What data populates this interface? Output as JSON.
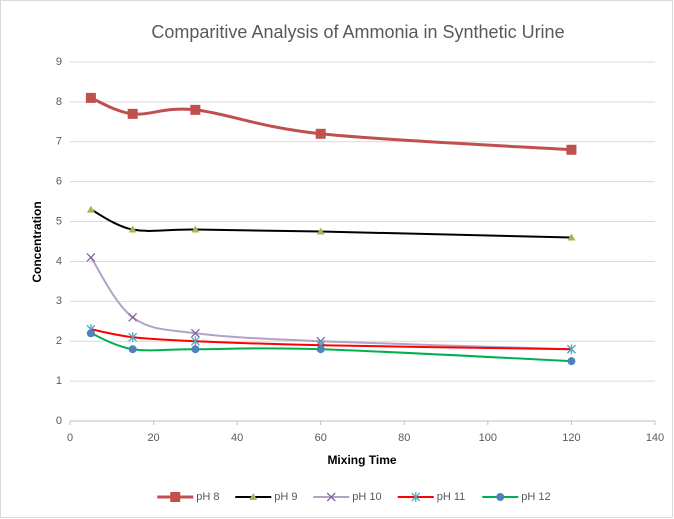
{
  "chart_data": {
    "type": "line",
    "title": "Comparitive Analysis of Ammonia in Synthetic Urine",
    "xlabel": "Mixing Time",
    "ylabel": "Concentration",
    "x": [
      5,
      15,
      30,
      60,
      120
    ],
    "series": [
      {
        "name": "pH 8",
        "color": "#c0504d",
        "marker": "square",
        "marker_color": "#c0504d",
        "values": [
          8.1,
          7.7,
          7.8,
          7.2,
          6.8
        ]
      },
      {
        "name": "pH 9",
        "color": "#000000",
        "marker": "triangle",
        "marker_color": "#9bbb59",
        "values": [
          5.3,
          4.8,
          4.8,
          4.75,
          4.6
        ]
      },
      {
        "name": "pH 10",
        "color": "#b3a2c7",
        "marker": "x",
        "marker_color": "#8064a2",
        "values": [
          4.1,
          2.6,
          2.2,
          2.0,
          1.8
        ]
      },
      {
        "name": "pH 11",
        "color": "#ff0000",
        "marker": "star",
        "marker_color": "#4bacc6",
        "values": [
          2.3,
          2.1,
          2.0,
          1.9,
          1.8
        ]
      },
      {
        "name": "pH 12",
        "color": "#00b050",
        "marker": "circle",
        "marker_color": "#4f81bd",
        "values": [
          2.2,
          1.8,
          1.8,
          1.8,
          1.5
        ]
      }
    ],
    "xlim": [
      0,
      140
    ],
    "xticks": [
      0,
      20,
      40,
      60,
      80,
      100,
      120,
      140
    ],
    "ylim": [
      0,
      9
    ],
    "yticks": [
      0,
      1,
      2,
      3,
      4,
      5,
      6,
      7,
      8,
      9
    ],
    "grid": true,
    "smooth": true,
    "legend": "bottom"
  }
}
